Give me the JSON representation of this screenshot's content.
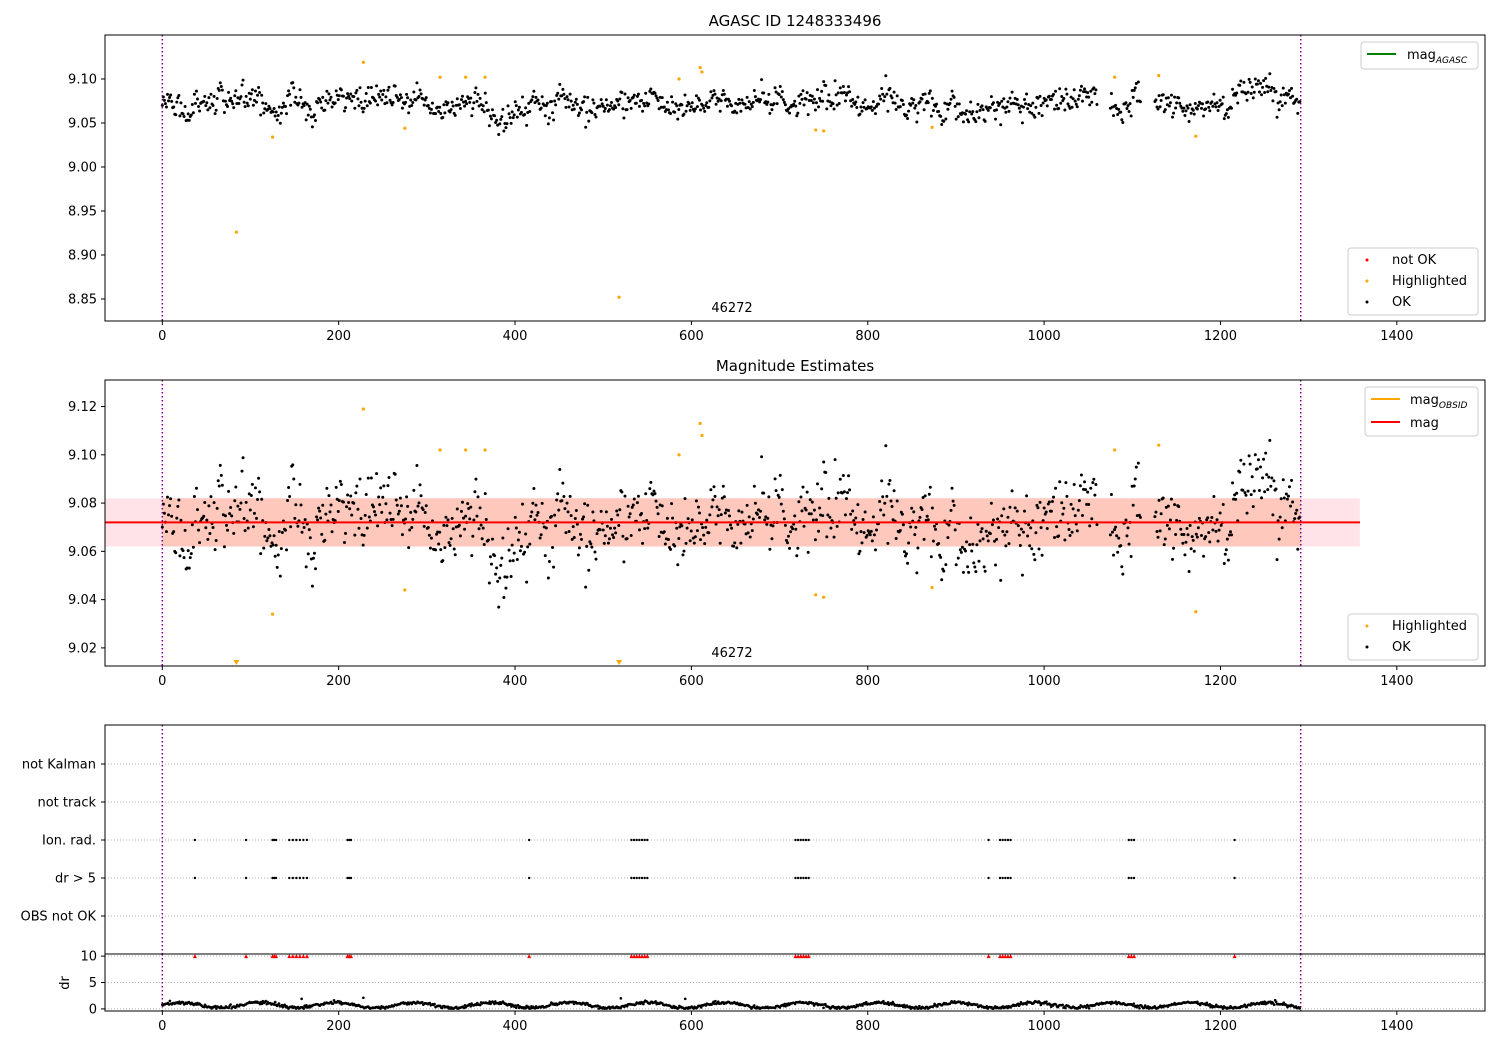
{
  "chart_data": [
    {
      "type": "scatter",
      "title": "AGASC ID 1248333496",
      "annotation": "46272",
      "xlim": [
        -65,
        1500
      ],
      "ylim": [
        8.825,
        9.15
      ],
      "xticks": [
        "0",
        "200",
        "400",
        "600",
        "800",
        "1000",
        "1200",
        "1400"
      ],
      "yticks": [
        "8.85",
        "8.90",
        "8.95",
        "9.00",
        "9.05",
        "9.10"
      ],
      "vlines": [
        0,
        1291
      ],
      "line_legend": [
        {
          "label": "mag",
          "sub": "AGASC",
          "color": "#008000"
        }
      ],
      "marker_legend": [
        {
          "label": "not OK",
          "color": "#ff0000"
        },
        {
          "label": "Highlighted",
          "color": "#ffa500"
        },
        {
          "label": "OK",
          "color": "#000000"
        }
      ],
      "ok_points": {
        "x_start": 0,
        "x_end": 1290,
        "n": 1100,
        "center": 9.072,
        "spread": 0.009,
        "gaps": [
          [
            1060,
            1075
          ],
          [
            1110,
            1125
          ]
        ]
      },
      "highlighted": [
        [
          84,
          8.926
        ],
        [
          125,
          9.034
        ],
        [
          228,
          9.119
        ],
        [
          275,
          9.044
        ],
        [
          315,
          9.102
        ],
        [
          344,
          9.102
        ],
        [
          366,
          9.102
        ],
        [
          518,
          8.852
        ],
        [
          586,
          9.1
        ],
        [
          610,
          9.113
        ],
        [
          612,
          9.108
        ],
        [
          741,
          9.042
        ],
        [
          750,
          9.041
        ],
        [
          873,
          9.045
        ],
        [
          1080,
          9.102
        ],
        [
          1130,
          9.104
        ],
        [
          1172,
          9.035
        ]
      ]
    },
    {
      "type": "scatter",
      "title": "Magnitude Estimates",
      "annotation": "46272",
      "xlim": [
        -65,
        1500
      ],
      "ylim": [
        9.0125,
        9.131
      ],
      "xticks": [
        "0",
        "200",
        "400",
        "600",
        "800",
        "1000",
        "1200",
        "1400"
      ],
      "yticks": [
        "9.02",
        "9.04",
        "9.06",
        "9.08",
        "9.10",
        "9.12"
      ],
      "vlines": [
        0,
        1291
      ],
      "mag": 9.072,
      "band_inner": [
        9.062,
        9.082
      ],
      "band_outer_x": [
        -65,
        1358
      ],
      "band_inner_x": [
        0,
        1291
      ],
      "line_legend": [
        {
          "label": "mag",
          "sub": "OBSID",
          "color": "#ffa500"
        },
        {
          "label": "mag",
          "sub": "",
          "color": "#ff0000"
        }
      ],
      "marker_legend": [
        {
          "label": "Highlighted",
          "color": "#ffa500"
        },
        {
          "label": "OK",
          "color": "#000000"
        }
      ],
      "ok_points": {
        "x_start": 0,
        "x_end": 1290,
        "n": 1100,
        "center": 9.072,
        "spread": 0.009,
        "gaps": [
          [
            1060,
            1075
          ],
          [
            1110,
            1125
          ]
        ]
      },
      "highlighted": [
        [
          125,
          9.034
        ],
        [
          228,
          9.119
        ],
        [
          275,
          9.044
        ],
        [
          315,
          9.102
        ],
        [
          344,
          9.102
        ],
        [
          366,
          9.102
        ],
        [
          586,
          9.1
        ],
        [
          610,
          9.113
        ],
        [
          612,
          9.108
        ],
        [
          741,
          9.042
        ],
        [
          750,
          9.041
        ],
        [
          873,
          9.045
        ],
        [
          1080,
          9.102
        ],
        [
          1130,
          9.104
        ],
        [
          1172,
          9.035
        ]
      ],
      "off_scale_low": [
        84,
        518
      ]
    },
    {
      "type": "scatter",
      "title": "",
      "xlim": [
        -65,
        1500
      ],
      "categories": [
        "not Kalman",
        "not track",
        "Ion. rad.",
        "dr > 5",
        "OBS not OK"
      ],
      "flag_x": [
        37,
        95,
        125,
        127,
        129,
        144,
        148,
        152,
        156,
        160,
        164,
        210,
        212,
        214,
        416,
        532,
        535,
        538,
        541,
        544,
        547,
        550,
        718,
        721,
        724,
        727,
        730,
        733,
        937,
        950,
        953,
        956,
        959,
        962,
        1096,
        1099,
        1102,
        1216
      ],
      "flag_rows": [
        "Ion. rad.",
        "dr > 5"
      ]
    },
    {
      "type": "scatter",
      "title": "",
      "ylabel": "dr",
      "xlim": [
        -65,
        1500
      ],
      "ylim": [
        -0.4,
        10.4
      ],
      "xticks": [
        "0",
        "200",
        "400",
        "600",
        "800",
        "1000",
        "1200",
        "1400"
      ],
      "yticks": [
        "0",
        "5",
        "10"
      ],
      "capped_value": 10,
      "dr_points": {
        "x_start": 0,
        "x_end": 1290,
        "n": 1200,
        "base": 0.7,
        "amplitude": 0.5
      },
      "dr_outliers": [
        [
          158,
          1.9
        ],
        [
          228,
          2.1
        ],
        [
          520,
          2.0
        ],
        [
          593,
          1.9
        ]
      ]
    }
  ]
}
